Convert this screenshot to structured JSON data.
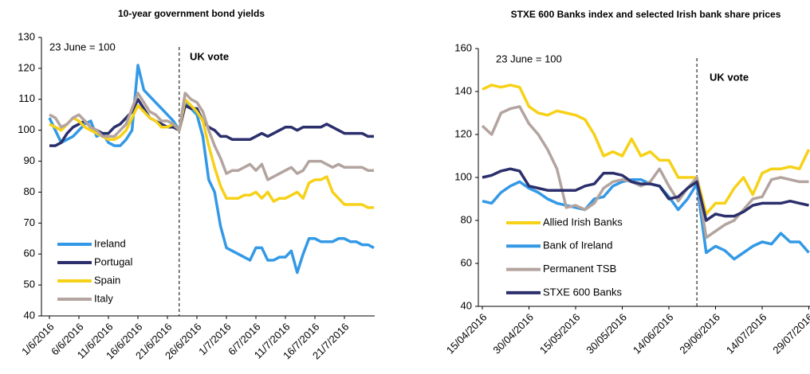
{
  "chart_data": [
    {
      "type": "line",
      "title": "10-year government bond yields",
      "annotations": [
        "23 June = 100",
        "UK vote"
      ],
      "categories": [
        "1/6/2016",
        null,
        null,
        null,
        null,
        "6/6/2016",
        null,
        null,
        null,
        null,
        "11/6/2016",
        null,
        null,
        null,
        null,
        "16/6/2016",
        null,
        null,
        null,
        null,
        "21/6/2016",
        null,
        null,
        null,
        null,
        "26/6/2016",
        null,
        null,
        null,
        null,
        "1/7/2016",
        null,
        null,
        null,
        null,
        "6/7/2016",
        null,
        null,
        null,
        null,
        "11/7/2016",
        null,
        null,
        null,
        null,
        "16/7/2016",
        null,
        null,
        null,
        null,
        "21/7/2016",
        null,
        null,
        null,
        null,
        null
      ],
      "series": [
        {
          "name": "Ireland",
          "color": "#3399e6",
          "values": [
            104,
            100,
            96,
            97,
            98,
            100,
            102,
            103,
            98,
            99,
            96,
            95,
            95,
            97,
            100,
            121,
            113,
            111,
            109,
            107,
            105,
            103,
            100,
            109,
            107,
            105,
            98,
            84,
            80,
            69,
            62,
            61,
            60,
            59,
            58,
            62,
            62,
            58,
            58,
            59,
            59,
            61,
            54,
            60,
            65,
            65,
            64,
            64,
            64,
            65,
            65,
            64,
            64,
            63,
            63,
            62
          ]
        },
        {
          "name": "Portugal",
          "color": "#2b2f6b",
          "values": [
            95,
            95,
            96,
            99,
            101,
            102,
            103,
            101,
            100,
            99,
            99,
            101,
            102,
            104,
            106,
            110,
            107,
            104,
            103,
            102,
            101,
            101,
            100,
            108,
            107,
            107,
            103,
            101,
            100,
            98,
            98,
            97,
            97,
            97,
            97,
            98,
            99,
            98,
            99,
            100,
            101,
            101,
            100,
            101,
            101,
            101,
            101,
            102,
            101,
            100,
            99,
            99,
            99,
            99,
            98,
            98
          ]
        },
        {
          "name": "Spain",
          "color": "#f7d117",
          "values": [
            102,
            101,
            100,
            102,
            104,
            103,
            101,
            100,
            99,
            98,
            97,
            97,
            98,
            100,
            104,
            108,
            106,
            104,
            103,
            101,
            101,
            102,
            100,
            110,
            108,
            106,
            103,
            95,
            88,
            82,
            78,
            78,
            78,
            79,
            79,
            80,
            78,
            80,
            77,
            78,
            78,
            79,
            80,
            78,
            83,
            84,
            84,
            85,
            80,
            78,
            76,
            76,
            76,
            76,
            75,
            75
          ]
        },
        {
          "name": "Italy",
          "color": "#b3a49f",
          "values": [
            105,
            104,
            101,
            102,
            104,
            105,
            103,
            101,
            100,
            98,
            98,
            98,
            100,
            102,
            107,
            112,
            109,
            106,
            105,
            103,
            103,
            102,
            100,
            112,
            110,
            109,
            106,
            100,
            95,
            91,
            86,
            87,
            87,
            88,
            89,
            87,
            89,
            84,
            85,
            86,
            87,
            88,
            86,
            87,
            90,
            90,
            90,
            89,
            88,
            89,
            88,
            88,
            88,
            88,
            87,
            87
          ]
        }
      ],
      "ylim": [
        40,
        130
      ],
      "yticks": [
        40,
        50,
        60,
        70,
        80,
        90,
        100,
        110,
        120,
        130
      ],
      "legend": "lower left",
      "grid": false
    },
    {
      "type": "line",
      "title": "STXE 600 Banks index and selected Irish bank share prices",
      "annotations": [
        "23 June = 100",
        "UK vote"
      ],
      "categories": [
        "15/04/2016",
        null,
        null,
        null,
        null,
        "30/04/2016",
        null,
        null,
        null,
        null,
        "15/05/2016",
        null,
        null,
        null,
        null,
        "30/05/2016",
        null,
        null,
        null,
        null,
        "14/06/2016",
        null,
        null,
        null,
        null,
        "29/06/2016",
        null,
        null,
        null,
        null,
        "14/07/2016",
        null,
        null,
        null,
        null,
        "29/07/2016"
      ],
      "series": [
        {
          "name": "Allied Irish Banks",
          "color": "#f7d117",
          "values": [
            141,
            143,
            142,
            143,
            142,
            133,
            130,
            129,
            131,
            130,
            129,
            127,
            120,
            110,
            112,
            110,
            118,
            110,
            112,
            108,
            108,
            100,
            100,
            100,
            83,
            88,
            88,
            95,
            100,
            92,
            102,
            104,
            104,
            105,
            104,
            113
          ]
        },
        {
          "name": "Bank of Ireland",
          "color": "#3399e6",
          "values": [
            89,
            88,
            93,
            96,
            98,
            95,
            93,
            90,
            88,
            87,
            86,
            85,
            90,
            91,
            96,
            98,
            99,
            99,
            97,
            96,
            91,
            85,
            90,
            97,
            65,
            68,
            66,
            62,
            65,
            68,
            70,
            69,
            74,
            70,
            70,
            65
          ]
        },
        {
          "name": "Permanent TSB",
          "color": "#b3a49f",
          "values": [
            124,
            120,
            130,
            132,
            133,
            125,
            120,
            113,
            104,
            86,
            87,
            85,
            88,
            95,
            98,
            99,
            98,
            96,
            98,
            104,
            96,
            89,
            95,
            100,
            72,
            75,
            78,
            80,
            85,
            90,
            91,
            99,
            100,
            99,
            98,
            98
          ]
        },
        {
          "name": "STXE 600 Banks",
          "color": "#2b2f6b",
          "values": [
            100,
            101,
            103,
            104,
            103,
            96,
            95,
            94,
            94,
            94,
            94,
            96,
            97,
            102,
            102,
            101,
            98,
            97,
            97,
            96,
            90,
            91,
            95,
            98,
            80,
            83,
            82,
            82,
            84,
            87,
            88,
            88,
            88,
            89,
            88,
            87
          ]
        }
      ],
      "ylim": [
        40,
        160
      ],
      "yticks": [
        40,
        60,
        80,
        100,
        120,
        140,
        160
      ],
      "legend": "lower left",
      "grid": false
    }
  ]
}
